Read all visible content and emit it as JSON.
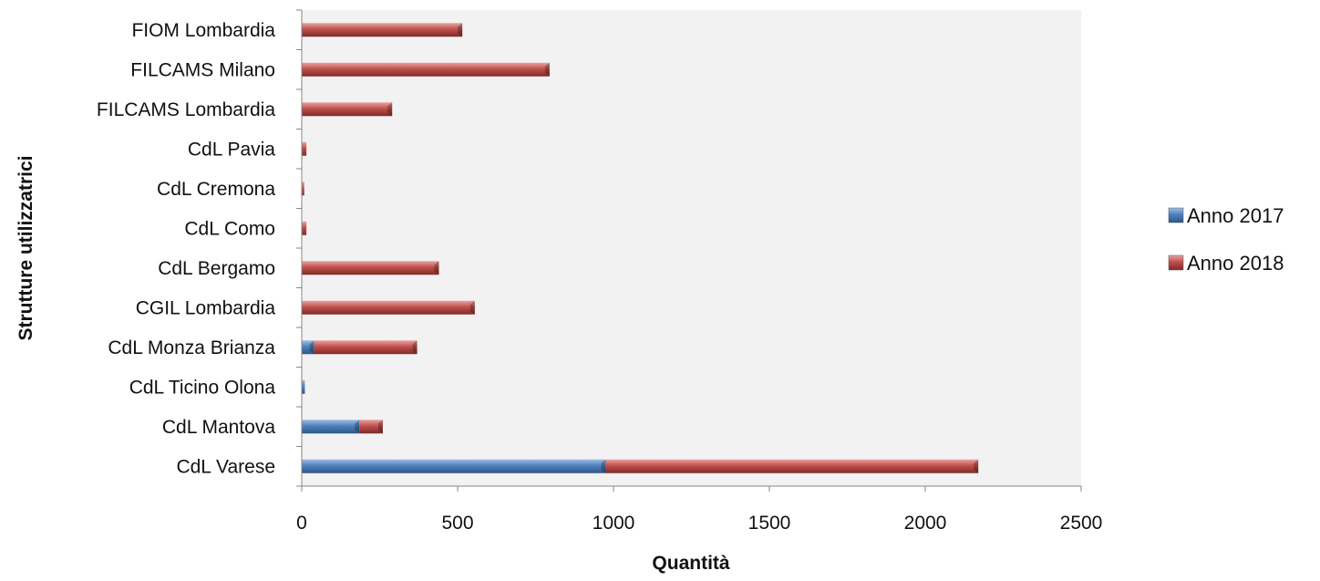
{
  "chart_data": {
    "type": "bar",
    "orientation": "horizontal",
    "stacked": true,
    "title": "",
    "xlabel": "Quantità",
    "ylabel": "Strutture utilizzatrici",
    "categories": [
      "CdL Varese",
      "CdL Mantova",
      "CdL Ticino Olona",
      "CdL Monza Brianza",
      "CGIL Lombardia",
      "CdL Bergamo",
      "CdL Como",
      "CdL Cremona",
      "CdL Pavia",
      "FILCAMS Lombardia",
      "FILCAMS Milano",
      "FIOM Lombardia"
    ],
    "series": [
      {
        "name": "Anno 2017",
        "color": "#4f81bd",
        "values": [
          975,
          185,
          10,
          40,
          0,
          0,
          0,
          0,
          0,
          0,
          0,
          0
        ]
      },
      {
        "name": "Anno 2018",
        "color": "#c0504d",
        "values": [
          1195,
          75,
          0,
          330,
          555,
          440,
          15,
          8,
          15,
          290,
          795,
          515
        ]
      }
    ],
    "xlim": [
      0,
      2500
    ],
    "xticks": [
      "0",
      "500",
      "1000",
      "1500",
      "2000",
      "2500"
    ],
    "grid": false,
    "legend_position": "right"
  }
}
